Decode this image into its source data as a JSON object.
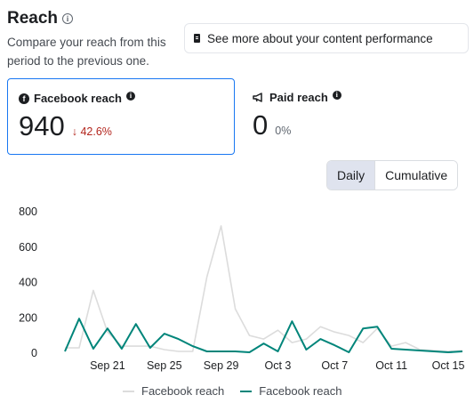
{
  "header": {
    "title": "Reach",
    "info_glyph": "i",
    "subtitle": "Compare your reach from this period to the previous one."
  },
  "performance_button": {
    "label": "See more about your content performance",
    "icon": "document-icon"
  },
  "cards": {
    "facebook": {
      "label": "Facebook reach",
      "value": "940",
      "delta": "↓ 42.6%"
    },
    "paid": {
      "label": "Paid reach",
      "value": "0",
      "delta": "0%"
    }
  },
  "toggle": {
    "daily": "Daily",
    "cumulative": "Cumulative"
  },
  "colors": {
    "current": "#00857a",
    "previous": "#dcdcdc",
    "accent": "#1877f2",
    "negative": "#b3261e"
  },
  "chart_data": {
    "type": "line",
    "x": [
      "Sep 18",
      "Sep 19",
      "Sep 20",
      "Sep 21",
      "Sep 22",
      "Sep 23",
      "Sep 24",
      "Sep 25",
      "Sep 26",
      "Sep 27",
      "Sep 28",
      "Sep 29",
      "Sep 30",
      "Oct 1",
      "Oct 2",
      "Oct 3",
      "Oct 4",
      "Oct 5",
      "Oct 6",
      "Oct 7",
      "Oct 8",
      "Oct 9",
      "Oct 10",
      "Oct 11",
      "Oct 12",
      "Oct 13",
      "Oct 14",
      "Oct 15",
      "Oct 16"
    ],
    "x_tick_labels": [
      "Sep 21",
      "Sep 25",
      "Sep 29",
      "Oct 3",
      "Oct 7",
      "Oct 11",
      "Oct 15"
    ],
    "y_ticks": [
      "0",
      "200",
      "400",
      "600",
      "800"
    ],
    "ylim": [
      0,
      800
    ],
    "series": [
      {
        "name": "Facebook reach",
        "color": "#dcdcdc",
        "values": [
          30,
          30,
          355,
          120,
          40,
          40,
          40,
          20,
          10,
          10,
          430,
          720,
          250,
          100,
          80,
          130,
          60,
          80,
          150,
          120,
          100,
          60,
          140,
          40,
          60,
          20,
          15,
          10,
          15
        ]
      },
      {
        "name": "Facebook reach",
        "color": "#00857a",
        "values": [
          10,
          195,
          25,
          140,
          25,
          165,
          30,
          110,
          80,
          40,
          10,
          10,
          10,
          5,
          55,
          10,
          180,
          20,
          80,
          45,
          5,
          140,
          150,
          25,
          20,
          15,
          10,
          5,
          10
        ]
      }
    ],
    "legend_position": "bottom"
  }
}
